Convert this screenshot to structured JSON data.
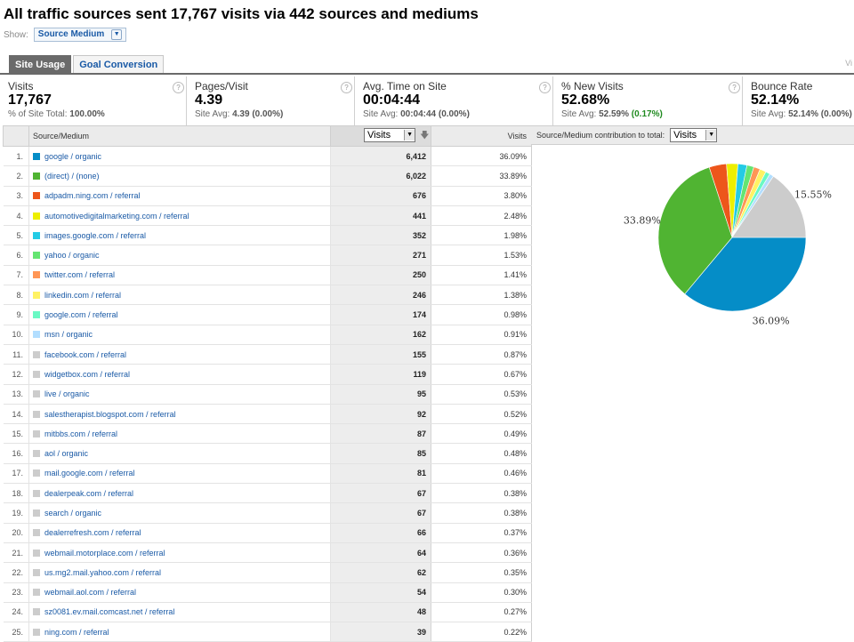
{
  "header": {
    "title": "All traffic sources sent 17,767 visits via 442 sources and mediums",
    "show_label": "Show:",
    "show_value": "Source Medium"
  },
  "tabs": [
    {
      "label": "Site Usage",
      "active": true
    },
    {
      "label": "Goal Conversion",
      "active": false
    }
  ],
  "tab_edge_text": "Vi",
  "metrics": [
    {
      "label": "Visits",
      "value": "17,767",
      "sub_prefix": "% of Site Total: ",
      "sub_value": "100.00%",
      "sub_delta": ""
    },
    {
      "label": "Pages/Visit",
      "value": "4.39",
      "sub_prefix": "Site Avg: ",
      "sub_value": "4.39 (0.00%)",
      "sub_delta": ""
    },
    {
      "label": "Avg. Time on Site",
      "value": "00:04:44",
      "sub_prefix": "Site Avg: ",
      "sub_value": "00:04:44 (0.00%)",
      "sub_delta": ""
    },
    {
      "label": "% New Visits",
      "value": "52.68%",
      "sub_prefix": "Site Avg: ",
      "sub_value": "52.59% ",
      "sub_delta": "(0.17%)"
    },
    {
      "label": "Bounce Rate",
      "value": "52.14%",
      "sub_prefix": "Site Avg: ",
      "sub_value": "52.14% (0.00%)",
      "sub_delta": ""
    }
  ],
  "help_icon": "?",
  "table": {
    "col_source": "Source/Medium",
    "col_select": "Visits",
    "col_visits": "Visits",
    "rows": [
      {
        "n": "1.",
        "source": "google / organic",
        "visits": "6,412",
        "pct": "36.09%",
        "color": "#058dc7"
      },
      {
        "n": "2.",
        "source": "(direct) / (none)",
        "visits": "6,022",
        "pct": "33.89%",
        "color": "#50b432"
      },
      {
        "n": "3.",
        "source": "adpadm.ning.com / referral",
        "visits": "676",
        "pct": "3.80%",
        "color": "#ed561b"
      },
      {
        "n": "4.",
        "source": "automotivedigitalmarketing.com / referral",
        "visits": "441",
        "pct": "2.48%",
        "color": "#edef00"
      },
      {
        "n": "5.",
        "source": "images.google.com / referral",
        "visits": "352",
        "pct": "1.98%",
        "color": "#24cbe5"
      },
      {
        "n": "6.",
        "source": "yahoo / organic",
        "visits": "271",
        "pct": "1.53%",
        "color": "#64e572"
      },
      {
        "n": "7.",
        "source": "twitter.com / referral",
        "visits": "250",
        "pct": "1.41%",
        "color": "#ff9655"
      },
      {
        "n": "8.",
        "source": "linkedin.com / referral",
        "visits": "246",
        "pct": "1.38%",
        "color": "#fff263"
      },
      {
        "n": "9.",
        "source": "google.com / referral",
        "visits": "174",
        "pct": "0.98%",
        "color": "#6af9c4"
      },
      {
        "n": "10.",
        "source": "msn / organic",
        "visits": "162",
        "pct": "0.91%",
        "color": "#b2deff"
      },
      {
        "n": "11.",
        "source": "facebook.com / referral",
        "visits": "155",
        "pct": "0.87%",
        "color": "#cccccc"
      },
      {
        "n": "12.",
        "source": "widgetbox.com / referral",
        "visits": "119",
        "pct": "0.67%",
        "color": "#cccccc"
      },
      {
        "n": "13.",
        "source": "live / organic",
        "visits": "95",
        "pct": "0.53%",
        "color": "#cccccc"
      },
      {
        "n": "14.",
        "source": "salestherapist.blogspot.com / referral",
        "visits": "92",
        "pct": "0.52%",
        "color": "#cccccc"
      },
      {
        "n": "15.",
        "source": "mitbbs.com / referral",
        "visits": "87",
        "pct": "0.49%",
        "color": "#cccccc"
      },
      {
        "n": "16.",
        "source": "aol / organic",
        "visits": "85",
        "pct": "0.48%",
        "color": "#cccccc"
      },
      {
        "n": "17.",
        "source": "mail.google.com / referral",
        "visits": "81",
        "pct": "0.46%",
        "color": "#cccccc"
      },
      {
        "n": "18.",
        "source": "dealerpeak.com / referral",
        "visits": "67",
        "pct": "0.38%",
        "color": "#cccccc"
      },
      {
        "n": "19.",
        "source": "search / organic",
        "visits": "67",
        "pct": "0.38%",
        "color": "#cccccc"
      },
      {
        "n": "20.",
        "source": "dealerrefresh.com / referral",
        "visits": "66",
        "pct": "0.37%",
        "color": "#cccccc"
      },
      {
        "n": "21.",
        "source": "webmail.motorplace.com / referral",
        "visits": "64",
        "pct": "0.36%",
        "color": "#cccccc"
      },
      {
        "n": "22.",
        "source": "us.mg2.mail.yahoo.com / referral",
        "visits": "62",
        "pct": "0.35%",
        "color": "#cccccc"
      },
      {
        "n": "23.",
        "source": "webmail.aol.com / referral",
        "visits": "54",
        "pct": "0.30%",
        "color": "#cccccc"
      },
      {
        "n": "24.",
        "source": "sz0081.ev.mail.comcast.net / referral",
        "visits": "48",
        "pct": "0.27%",
        "color": "#cccccc"
      },
      {
        "n": "25.",
        "source": "ning.com / referral",
        "visits": "39",
        "pct": "0.22%",
        "color": "#cccccc"
      }
    ]
  },
  "pie": {
    "header_label": "Source/Medium contribution to total:",
    "select_value": "Visits"
  },
  "chart_data": {
    "type": "pie",
    "labels": [
      "google / organic",
      "(direct) / (none)",
      "adpadm.ning.com / referral",
      "automotivedigitalmarketing.com / referral",
      "images.google.com / referral",
      "yahoo / organic",
      "twitter.com / referral",
      "linkedin.com / referral",
      "google.com / referral",
      "msn / organic",
      "other"
    ],
    "values": [
      36.09,
      33.89,
      3.8,
      2.48,
      1.98,
      1.53,
      1.41,
      1.38,
      0.98,
      0.91,
      15.55
    ],
    "colors": [
      "#058dc7",
      "#50b432",
      "#ed561b",
      "#edef00",
      "#24cbe5",
      "#64e572",
      "#ff9655",
      "#fff263",
      "#6af9c4",
      "#b2deff",
      "#cccccc"
    ],
    "data_labels": [
      {
        "slice": 0,
        "text": "36.09%"
      },
      {
        "slice": 1,
        "text": "33.89%"
      },
      {
        "slice": 10,
        "text": "15.55%"
      }
    ]
  }
}
